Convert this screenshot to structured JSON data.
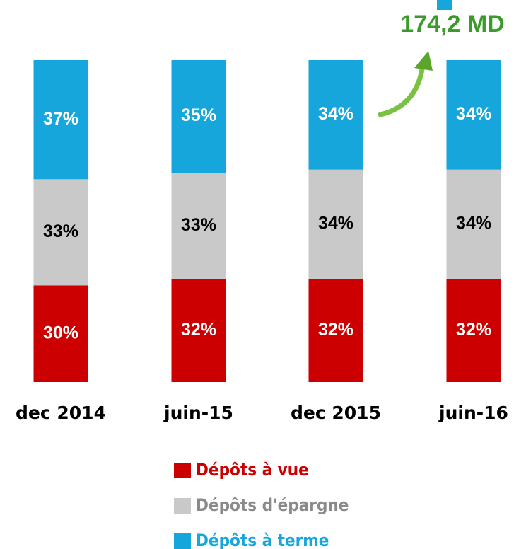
{
  "chart_data": {
    "type": "stacked_bar",
    "categories": [
      "dec 2014",
      "juin-15",
      "dec 2015",
      "juin-16"
    ],
    "series": [
      {
        "name": "Dépôts à vue",
        "color": "#cc0000",
        "label_color": "#ffffff",
        "values": [
          30,
          32,
          32,
          32
        ],
        "value_labels": [
          "30%",
          "32%",
          "32%",
          "32%"
        ]
      },
      {
        "name": "Dépôts d'épargne",
        "color": "#c9c9c9",
        "label_color": "#000000",
        "values": [
          33,
          33,
          34,
          34
        ],
        "value_labels": [
          "33%",
          "33%",
          "34%",
          "34%"
        ]
      },
      {
        "name": "Dépôts à terme",
        "color": "#17a6dc",
        "label_color": "#ffffff",
        "values": [
          37,
          35,
          34,
          34
        ],
        "value_labels": [
          "37%",
          "35%",
          "34%",
          "34%"
        ]
      }
    ],
    "annotation": "174,2 MD",
    "annotation_color": "#3a9a2a"
  }
}
